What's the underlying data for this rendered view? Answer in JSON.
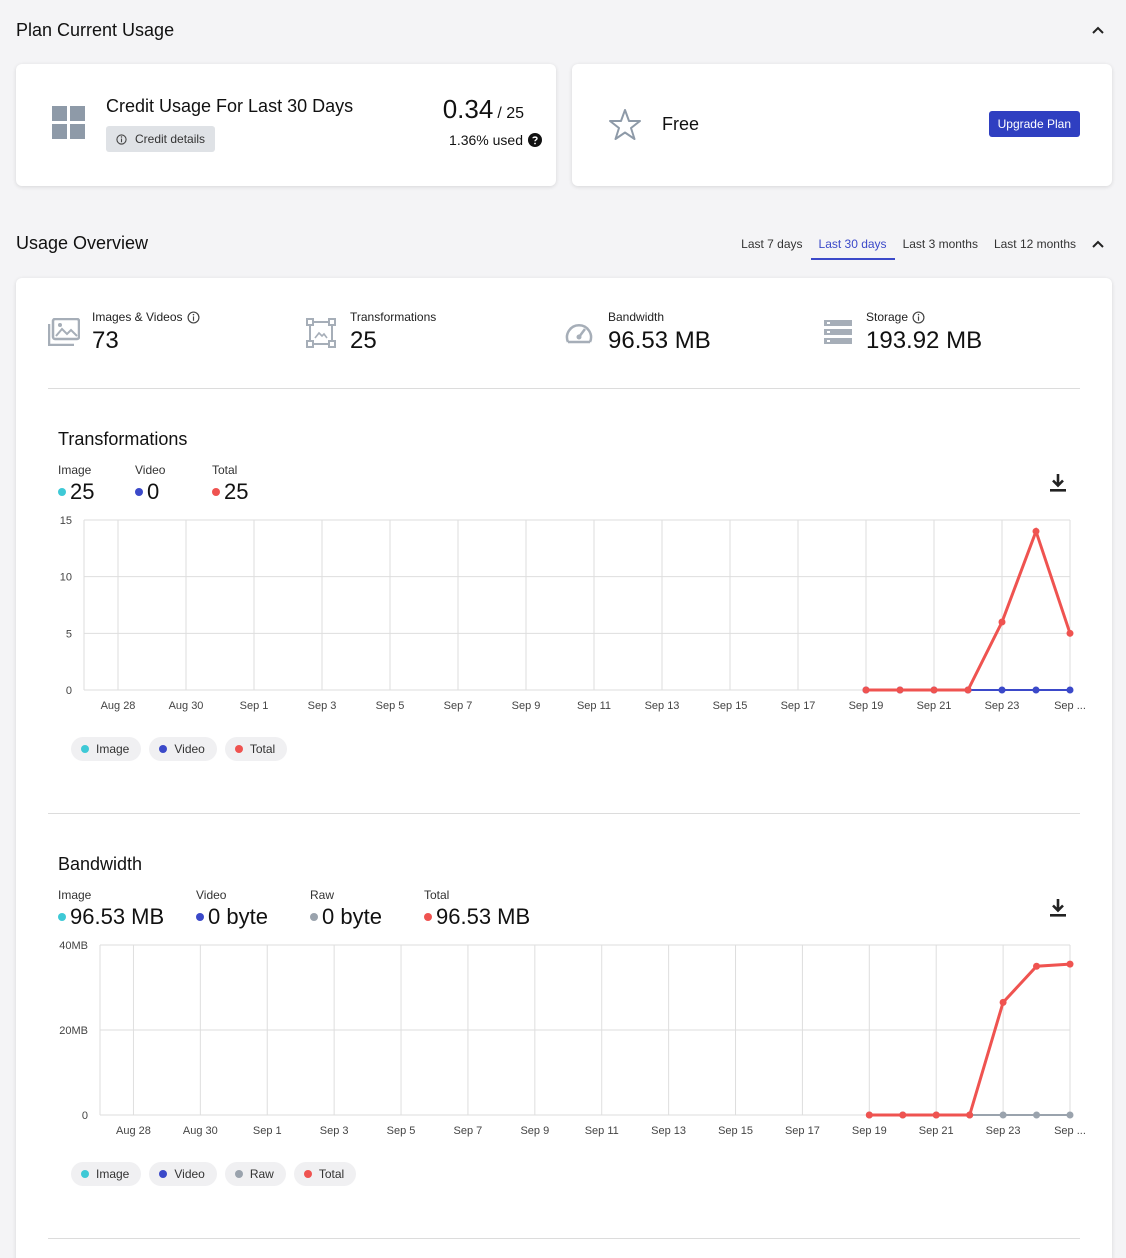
{
  "plan_usage": {
    "title": "Plan Current Usage",
    "credit_card": {
      "title": "Credit Usage For Last 30 Days",
      "details_button": "Credit details",
      "used": "0.34",
      "limit": "/ 25",
      "percent_text": "1.36% used"
    },
    "plan_card": {
      "plan_name": "Free",
      "upgrade_button": "Upgrade Plan"
    }
  },
  "overview": {
    "title": "Usage Overview",
    "ranges": [
      "Last 7 days",
      "Last 30 days",
      "Last 3 months",
      "Last 12 months"
    ],
    "active_range": 1,
    "stats": [
      {
        "label": "Images & Videos",
        "value": "73",
        "icon": "images-icon"
      },
      {
        "label": "Transformations",
        "value": "25",
        "icon": "transform-icon"
      },
      {
        "label": "Bandwidth",
        "value": "96.53 MB",
        "icon": "speedometer-icon"
      },
      {
        "label": "Storage",
        "value": "193.92 MB",
        "icon": "storage-icon"
      }
    ]
  },
  "colors": {
    "image": "#3ec9d6",
    "video": "#3b49c9",
    "raw": "#9aa3ad",
    "total": "#ef5350",
    "accent": "#3b49c9"
  },
  "transformations": {
    "title": "Transformations",
    "summary": [
      {
        "label": "Image",
        "value": "25",
        "color": "#3ec9d6"
      },
      {
        "label": "Video",
        "value": "0",
        "color": "#3b49c9"
      },
      {
        "label": "Total",
        "value": "25",
        "color": "#ef5350"
      }
    ],
    "legend": [
      "Image",
      "Video",
      "Total"
    ]
  },
  "bandwidth": {
    "title": "Bandwidth",
    "summary": [
      {
        "label": "Image",
        "value": "96.53 MB",
        "color": "#3ec9d6"
      },
      {
        "label": "Video",
        "value": "0 byte",
        "color": "#3b49c9"
      },
      {
        "label": "Raw",
        "value": "0 byte",
        "color": "#9aa3ad"
      },
      {
        "label": "Total",
        "value": "96.53 MB",
        "color": "#ef5350"
      }
    ],
    "legend": [
      "Image",
      "Video",
      "Raw",
      "Total"
    ]
  },
  "chart_data": [
    {
      "type": "line",
      "title": "Transformations",
      "x_tick_labels": [
        "Aug 28",
        "Aug 30",
        "Sep 1",
        "Sep 3",
        "Sep 5",
        "Sep 7",
        "Sep 9",
        "Sep 11",
        "Sep 13",
        "Sep 15",
        "Sep 17",
        "Sep 19",
        "Sep 21",
        "Sep 23",
        "Sep ..."
      ],
      "y_tick_labels": [
        "0",
        "5",
        "10",
        "15"
      ],
      "ylim": [
        0,
        15
      ],
      "x": [
        "Sep 19",
        "Sep 20",
        "Sep 21",
        "Sep 22",
        "Sep 23",
        "Sep 24",
        "Sep 25"
      ],
      "series": [
        {
          "name": "Video",
          "color": "#3b49c9",
          "values": [
            0,
            0,
            0,
            0,
            0,
            0,
            0
          ]
        },
        {
          "name": "Total",
          "color": "#ef5350",
          "values": [
            0,
            0,
            0,
            0,
            6,
            14,
            5
          ]
        }
      ],
      "grid": true
    },
    {
      "type": "line",
      "title": "Bandwidth",
      "x_tick_labels": [
        "Aug 28",
        "Aug 30",
        "Sep 1",
        "Sep 3",
        "Sep 5",
        "Sep 7",
        "Sep 9",
        "Sep 11",
        "Sep 13",
        "Sep 15",
        "Sep 17",
        "Sep 19",
        "Sep 21",
        "Sep 23",
        "Sep ..."
      ],
      "y_tick_labels": [
        "0",
        "20MB",
        "40MB"
      ],
      "ylim": [
        0,
        40
      ],
      "x": [
        "Sep 19",
        "Sep 20",
        "Sep 21",
        "Sep 22",
        "Sep 23",
        "Sep 24",
        "Sep 25"
      ],
      "series": [
        {
          "name": "Raw",
          "color": "#9aa3ad",
          "values": [
            0,
            0,
            0,
            0,
            0,
            0,
            0
          ]
        },
        {
          "name": "Total",
          "color": "#ef5350",
          "values": [
            0,
            0,
            0,
            0,
            26.5,
            35,
            35.5
          ]
        }
      ],
      "grid": true
    }
  ]
}
